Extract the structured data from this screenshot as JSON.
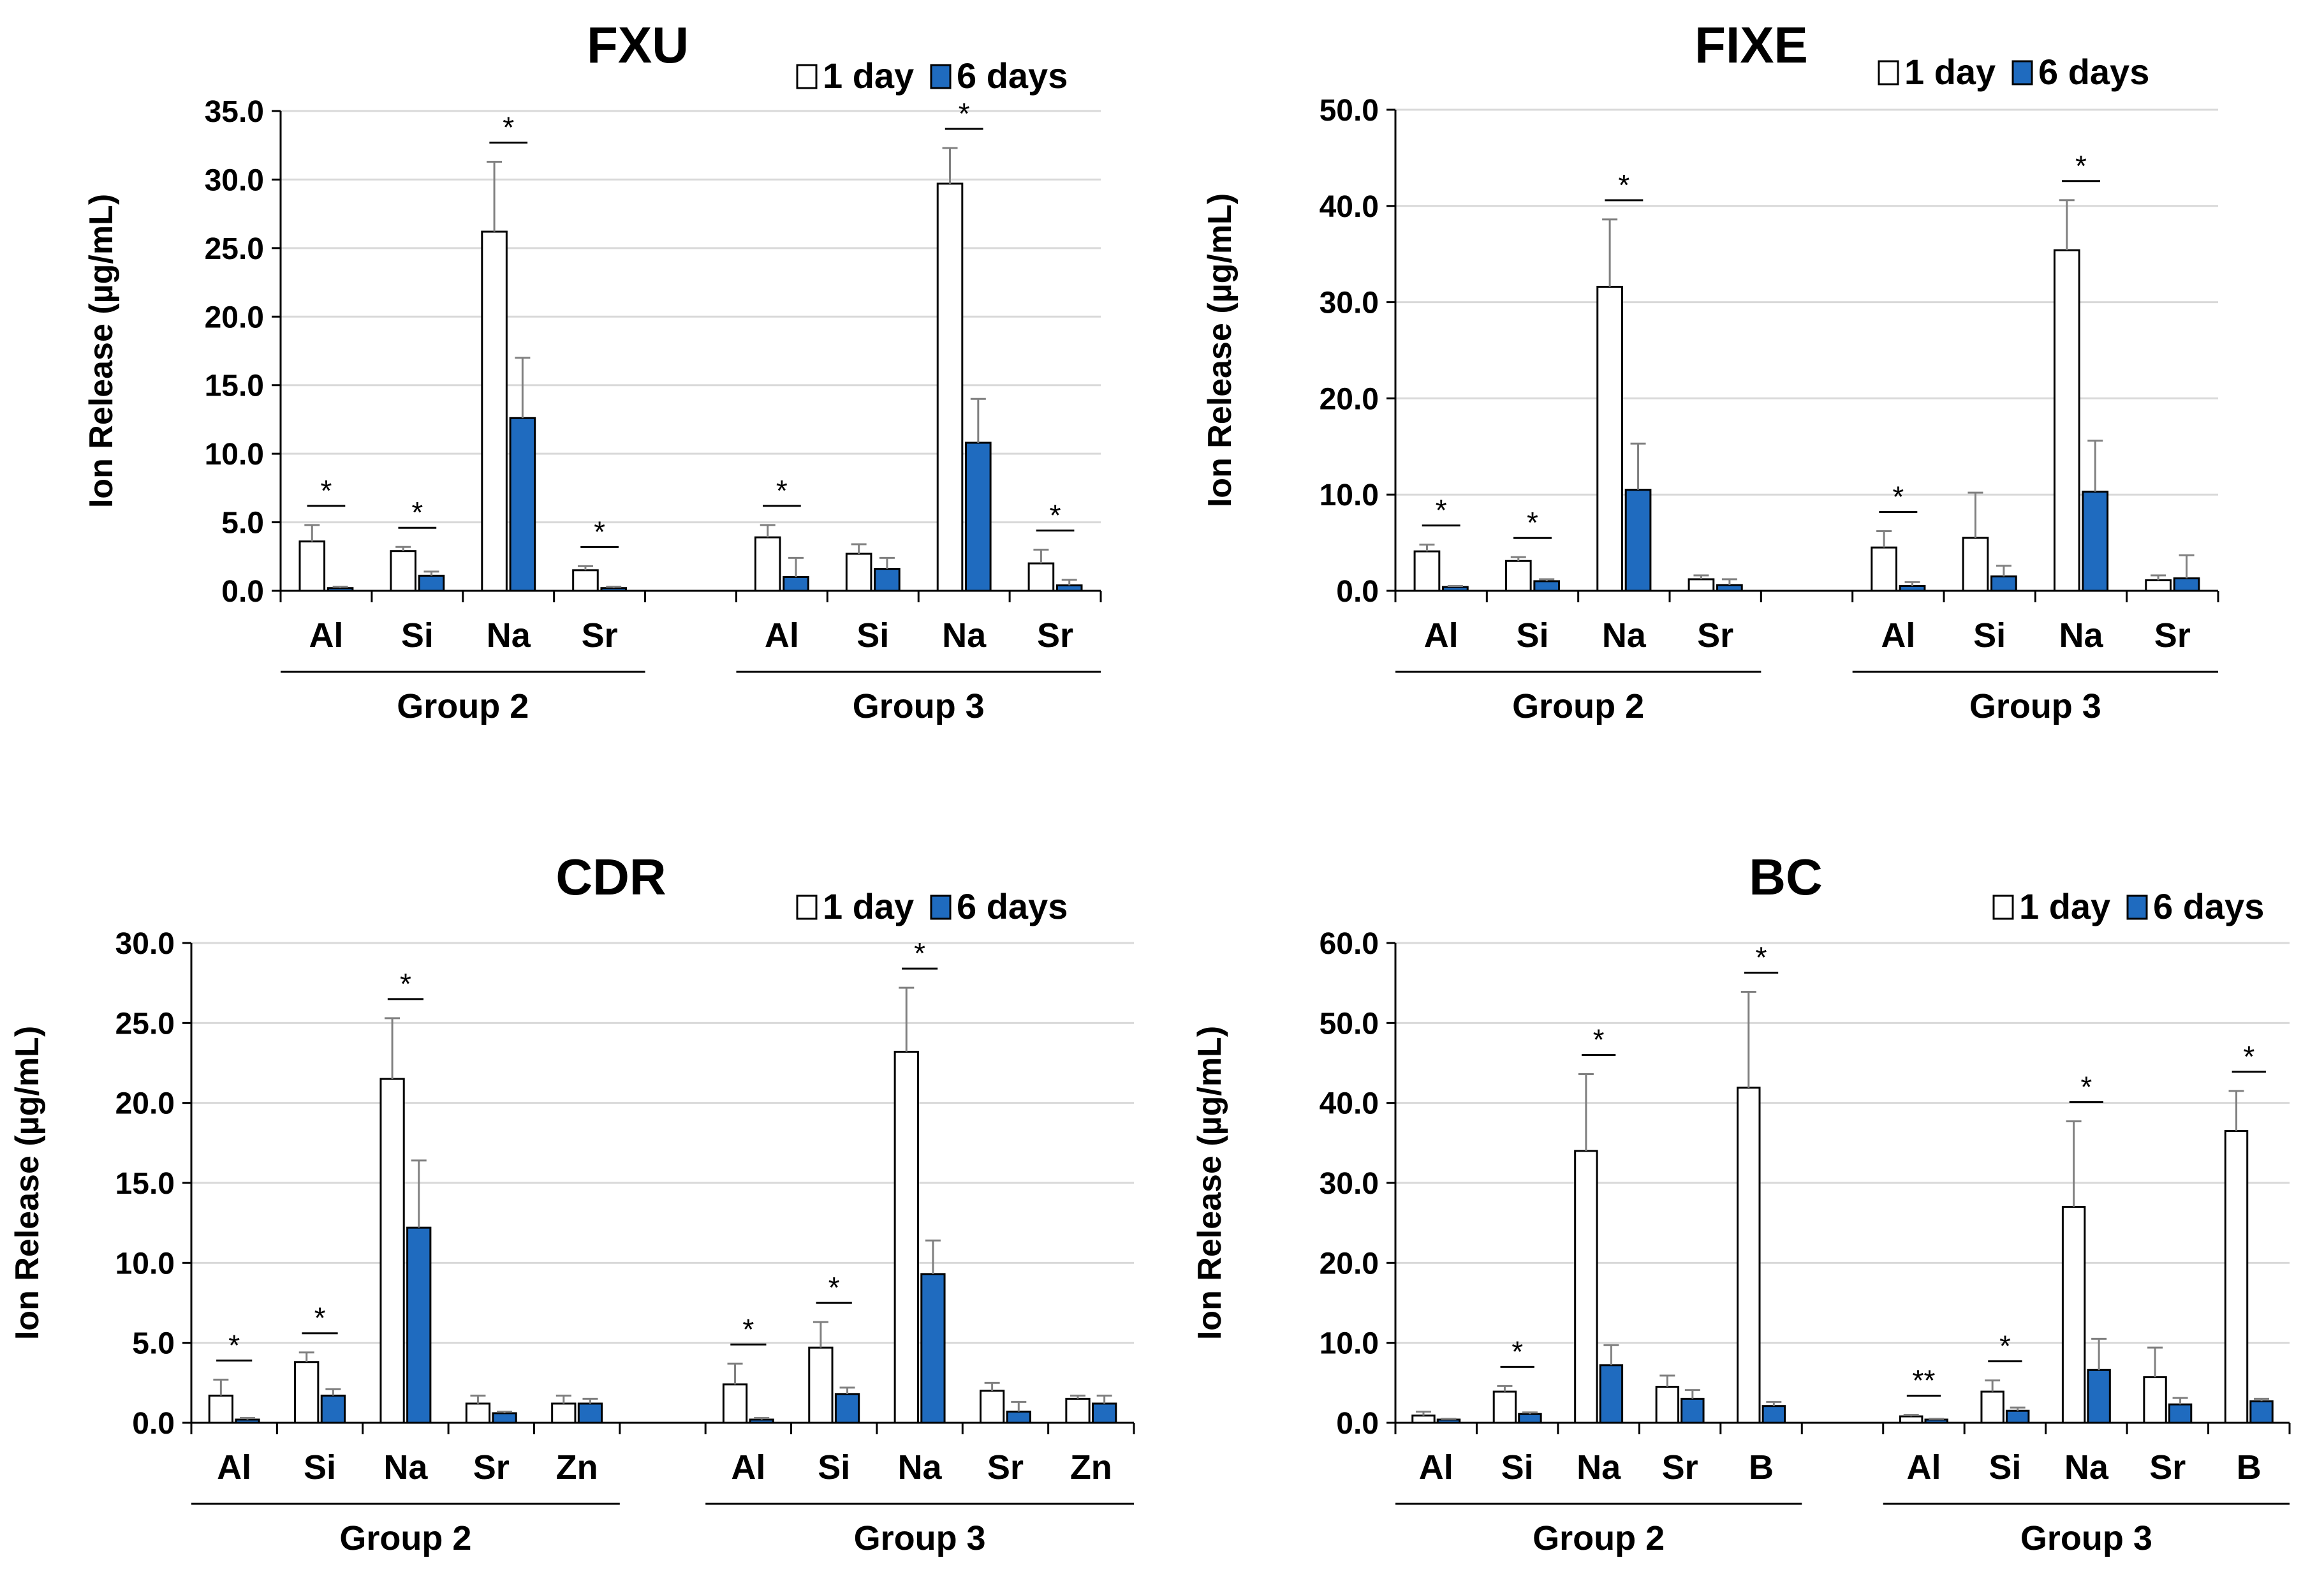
{
  "figure": {
    "legend_labels": [
      "1 day",
      "6 days"
    ],
    "colors": {
      "day1": "#ffffff",
      "day6": "#1f6bbf",
      "bar_edge": "#000000",
      "errorbar": "#808080",
      "grid": "#d9d9d9"
    }
  },
  "chart_data": [
    {
      "type": "bar",
      "title": "FXU",
      "ylabel": "Ion Release (µg/mL)",
      "ylim": [
        0,
        35
      ],
      "yticks": [
        "0.0",
        "5.0",
        "10.0",
        "15.0",
        "20.0",
        "25.0",
        "30.0",
        "35.0"
      ],
      "grid": true,
      "legend_position": "top-right",
      "groups": [
        {
          "name": "Group 2",
          "categories": [
            "Al",
            "Si",
            "Na",
            "Sr"
          ],
          "series": [
            {
              "name": "1 day",
              "values": [
                3.6,
                2.9,
                26.2,
                1.5
              ],
              "errors": [
                1.2,
                0.3,
                5.1,
                0.3
              ]
            },
            {
              "name": "6 days",
              "values": [
                0.2,
                1.1,
                12.6,
                0.2
              ],
              "errors": [
                0.1,
                0.3,
                4.4,
                0.1
              ]
            }
          ],
          "significance": [
            "*",
            "*",
            "*",
            "*"
          ]
        },
        {
          "name": "Group 3",
          "categories": [
            "Al",
            "Si",
            "Na",
            "Sr"
          ],
          "series": [
            {
              "name": "1 day",
              "values": [
                3.9,
                2.7,
                29.7,
                2.0
              ],
              "errors": [
                0.9,
                0.7,
                2.6,
                1.0
              ]
            },
            {
              "name": "6 days",
              "values": [
                1.0,
                1.6,
                10.8,
                0.4
              ],
              "errors": [
                1.4,
                0.8,
                3.2,
                0.4
              ]
            }
          ],
          "significance": [
            "*",
            "",
            "*",
            "*"
          ]
        }
      ]
    },
    {
      "type": "bar",
      "title": "FIXE",
      "ylabel": "Ion Release (µg/mL)",
      "ylim": [
        0,
        50
      ],
      "yticks": [
        "0.0",
        "10.0",
        "20.0",
        "30.0",
        "40.0",
        "50.0"
      ],
      "grid": true,
      "legend_position": "top-right",
      "groups": [
        {
          "name": "Group 2",
          "categories": [
            "Al",
            "Si",
            "Na",
            "Sr"
          ],
          "series": [
            {
              "name": "1 day",
              "values": [
                4.1,
                3.1,
                31.6,
                1.2
              ],
              "errors": [
                0.7,
                0.4,
                7.0,
                0.4
              ]
            },
            {
              "name": "6 days",
              "values": [
                0.4,
                1.0,
                10.5,
                0.6
              ],
              "errors": [
                0.1,
                0.2,
                4.8,
                0.6
              ]
            }
          ],
          "significance": [
            "*",
            "*",
            "*",
            ""
          ]
        },
        {
          "name": "Group 3",
          "categories": [
            "Al",
            "Si",
            "Na",
            "Sr"
          ],
          "series": [
            {
              "name": "1 day",
              "values": [
                4.5,
                5.5,
                35.4,
                1.1
              ],
              "errors": [
                1.7,
                4.7,
                5.2,
                0.5
              ]
            },
            {
              "name": "6 days",
              "values": [
                0.5,
                1.5,
                10.3,
                1.3
              ],
              "errors": [
                0.4,
                1.1,
                5.3,
                2.4
              ]
            }
          ],
          "significance": [
            "*",
            "",
            "*",
            ""
          ]
        }
      ]
    },
    {
      "type": "bar",
      "title": "CDR",
      "ylabel": "Ion Release (µg/mL)",
      "ylim": [
        0,
        30
      ],
      "yticks": [
        "0.0",
        "5.0",
        "10.0",
        "15.0",
        "20.0",
        "25.0",
        "30.0"
      ],
      "grid": true,
      "legend_position": "top-right",
      "groups": [
        {
          "name": "Group 2",
          "categories": [
            "Al",
            "Si",
            "Na",
            "Sr",
            "Zn"
          ],
          "series": [
            {
              "name": "1 day",
              "values": [
                1.7,
                3.8,
                21.5,
                1.2,
                1.2
              ],
              "errors": [
                1.0,
                0.6,
                3.8,
                0.5,
                0.5
              ]
            },
            {
              "name": "6 days",
              "values": [
                0.2,
                1.7,
                12.2,
                0.6,
                1.2
              ],
              "errors": [
                0.1,
                0.4,
                4.2,
                0.1,
                0.3
              ]
            }
          ],
          "significance": [
            "*",
            "*",
            "*",
            "",
            ""
          ]
        },
        {
          "name": "Group 3",
          "categories": [
            "Al",
            "Si",
            "Na",
            "Sr",
            "Zn"
          ],
          "series": [
            {
              "name": "1 day",
              "values": [
                2.4,
                4.7,
                23.2,
                2.0,
                1.5
              ],
              "errors": [
                1.3,
                1.6,
                4.0,
                0.5,
                0.2
              ]
            },
            {
              "name": "6 days",
              "values": [
                0.2,
                1.8,
                9.3,
                0.7,
                1.2
              ],
              "errors": [
                0.1,
                0.4,
                2.1,
                0.6,
                0.5
              ]
            }
          ],
          "significance": [
            "*",
            "*",
            "*",
            "",
            ""
          ]
        }
      ]
    },
    {
      "type": "bar",
      "title": "BC",
      "ylabel": "Ion Release (µg/mL)",
      "ylim": [
        0,
        60
      ],
      "yticks": [
        "0.0",
        "10.0",
        "20.0",
        "30.0",
        "40.0",
        "50.0",
        "60.0"
      ],
      "grid": true,
      "legend_position": "top-right",
      "groups": [
        {
          "name": "Group 2",
          "categories": [
            "Al",
            "Si",
            "Na",
            "Sr",
            "B"
          ],
          "series": [
            {
              "name": "1 day",
              "values": [
                0.9,
                3.9,
                34.0,
                4.5,
                41.9
              ],
              "errors": [
                0.5,
                0.7,
                9.6,
                1.4,
                12.0
              ]
            },
            {
              "name": "6 days",
              "values": [
                0.4,
                1.1,
                7.2,
                3.0,
                2.1
              ],
              "errors": [
                0.1,
                0.2,
                2.5,
                1.1,
                0.5
              ]
            }
          ],
          "significance": [
            "",
            "*",
            "*",
            "",
            "*"
          ]
        },
        {
          "name": "Group 3",
          "categories": [
            "Al",
            "Si",
            "Na",
            "Sr",
            "B"
          ],
          "series": [
            {
              "name": "1 day",
              "values": [
                0.8,
                3.9,
                27.0,
                5.7,
                36.5
              ],
              "errors": [
                0.2,
                1.4,
                10.7,
                3.7,
                5.0
              ]
            },
            {
              "name": "6 days",
              "values": [
                0.4,
                1.5,
                6.6,
                2.3,
                2.7
              ],
              "errors": [
                0.1,
                0.4,
                3.9,
                0.8,
                0.3
              ]
            }
          ],
          "significance": [
            "**",
            "*",
            "*",
            "",
            "*"
          ]
        }
      ]
    }
  ]
}
